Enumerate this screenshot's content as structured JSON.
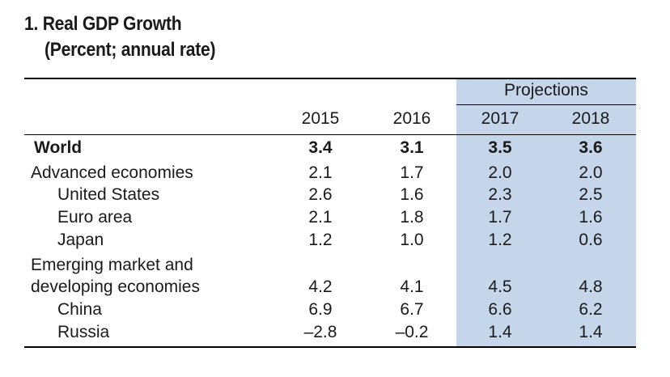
{
  "title": "1. Real GDP Growth",
  "subtitle": "(Percent; annual rate)",
  "projections_label": "Projections",
  "columns": [
    "2015",
    "2016",
    "2017",
    "2018"
  ],
  "rows": [
    {
      "label": "World",
      "values": [
        "3.4",
        "3.1",
        "3.5",
        "3.6"
      ]
    },
    {
      "label": "Advanced economies",
      "values": [
        "2.1",
        "1.7",
        "2.0",
        "2.0"
      ]
    },
    {
      "label": "United States",
      "values": [
        "2.6",
        "1.6",
        "2.3",
        "2.5"
      ]
    },
    {
      "label": "Euro area",
      "values": [
        "2.1",
        "1.8",
        "1.7",
        "1.6"
      ]
    },
    {
      "label": "Japan",
      "values": [
        "1.2",
        "1.0",
        "1.2",
        "0.6"
      ]
    },
    {
      "label_line1": "Emerging market and",
      "label": "developing economies",
      "values": [
        "4.2",
        "4.1",
        "4.5",
        "4.8"
      ]
    },
    {
      "label": "China",
      "values": [
        "6.9",
        "6.7",
        "6.6",
        "6.2"
      ]
    },
    {
      "label": "Russia",
      "values": [
        "–2.8",
        "–0.2",
        "1.4",
        "1.4"
      ]
    }
  ],
  "colors": {
    "projection_shading": "#c5d6ea",
    "text": "#1a1a1a",
    "rules": "#000000"
  }
}
